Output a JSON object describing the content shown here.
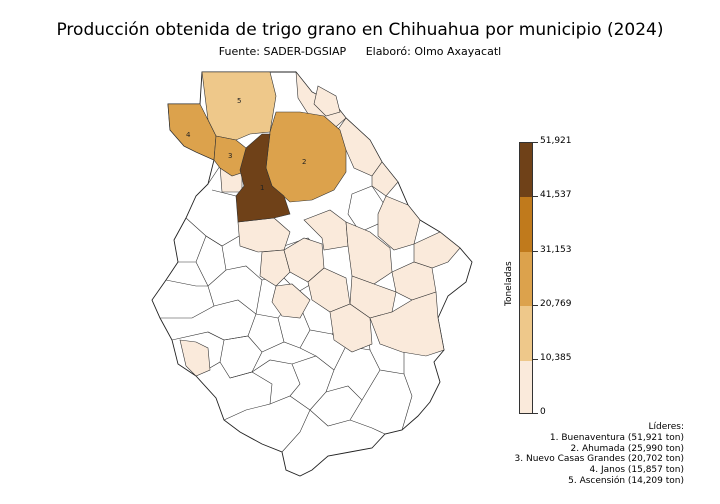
{
  "title": "Producción obtenida de trigo grano en Chihuahua por municipio (2024)",
  "source": "Fuente: SADER-DGSIAP",
  "author": "Elaboró: Olmo Axayacatl",
  "legend": {
    "title": "Toneladas",
    "ticks": [
      "51,921",
      "41,537",
      "31,153",
      "20,769",
      "10,385",
      "0"
    ],
    "colors": [
      "#6f4118",
      "#c07a1c",
      "#dca24c",
      "#eec88a",
      "#faeadb"
    ]
  },
  "leaders": {
    "heading": "Líderes:",
    "items": [
      "1. Buenaventura (51,921 ton)",
      "2. Ahumada (25,990 ton)",
      "3. Nuevo Casas Grandes (20,702 ton)",
      "4. Janos (15,857 ton)",
      "5. Ascensión (14,209 ton)"
    ]
  },
  "map_labels": [
    "1",
    "2",
    "3",
    "4",
    "5"
  ],
  "colors": {
    "outline": "#222222",
    "none": "#ffffff"
  }
}
